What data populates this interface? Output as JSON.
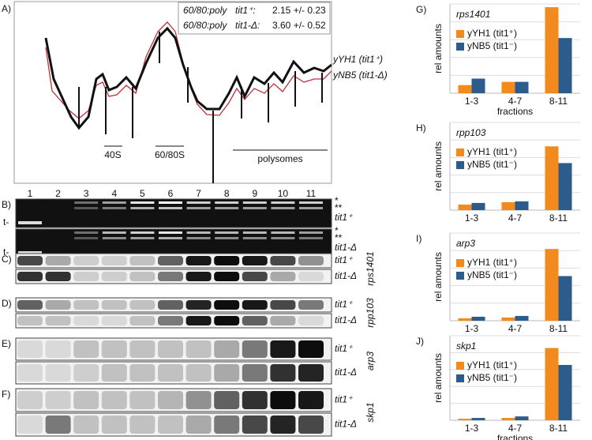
{
  "panel_a": {
    "label": "A)",
    "legend_rows": [
      [
        "60/80:poly",
        "tit1⁺:",
        "2.15 +/- 0.23"
      ],
      [
        "60/80:poly",
        "tit1-Δ:",
        "3.60 +/- 0.52"
      ]
    ],
    "traces": [
      "yYH1 (tit1⁺)",
      "yNB5 (tit1-Δ)"
    ],
    "peaks": [
      "40S",
      "60/80S",
      "polysomes"
    ],
    "fractions": [
      "1",
      "2",
      "3",
      "4",
      "5",
      "6",
      "7",
      "8",
      "9",
      "10",
      "11"
    ]
  },
  "gels": [
    {
      "label": "B)",
      "rows": [
        {
          "strain": "tit1⁺",
          "stars": [
            "*",
            "**"
          ],
          "marker": "t-"
        },
        {
          "strain": "tit1-Δ",
          "stars": [
            "*",
            "**"
          ],
          "marker": "t-"
        }
      ]
    },
    {
      "label": "C)",
      "gene": "rps1401",
      "rows": [
        {
          "strain": "tit1⁺"
        },
        {
          "strain": "tit1-Δ"
        }
      ]
    },
    {
      "label": "D)",
      "gene": "rpp103",
      "rows": [
        {
          "strain": "tit1⁺"
        },
        {
          "strain": "tit1-Δ"
        }
      ]
    },
    {
      "label": "E)",
      "gene": "arp3",
      "rows": [
        {
          "strain": "tit1⁺"
        },
        {
          "strain": "tit1-Δ"
        }
      ]
    },
    {
      "label": "F)",
      "gene": "skp1",
      "rows": [
        {
          "strain": "tit1⁺"
        },
        {
          "strain": "tit1-Δ"
        }
      ]
    }
  ],
  "chart_data": [
    {
      "type": "bar",
      "label": "G)",
      "title": "rps1401",
      "y_label": "rel amounts",
      "x_label": "fractions",
      "categories": [
        "1-3",
        "4-7",
        "8-11"
      ],
      "ylim": [
        0,
        110
      ],
      "series": [
        {
          "name": "yYH1 (tit1⁺)",
          "color": "#f28a1e",
          "values": [
            10,
            14,
            106
          ]
        },
        {
          "name": "yNB5 (tit1⁻)",
          "color": "#2b5c8c",
          "values": [
            18,
            14,
            68
          ]
        }
      ]
    },
    {
      "type": "bar",
      "label": "H)",
      "title": "rpp103",
      "y_label": "rel amounts",
      "categories": [
        "1-3",
        "4-7",
        "8-11"
      ],
      "ylim": [
        0,
        110
      ],
      "series": [
        {
          "name": "yYH1 (tit1⁺)",
          "color": "#f28a1e",
          "values": [
            7,
            10,
            80
          ]
        },
        {
          "name": "yNB5 (tit1⁻)",
          "color": "#2b5c8c",
          "values": [
            9,
            11,
            59
          ]
        }
      ]
    },
    {
      "type": "bar",
      "label": "I)",
      "title": "arp3",
      "y_label": "rel amounts",
      "categories": [
        "1-3",
        "4-7",
        "8-11"
      ],
      "ylim": [
        0,
        110
      ],
      "series": [
        {
          "name": "yYH1 (tit1⁺)",
          "color": "#f28a1e",
          "values": [
            3,
            4,
            90
          ]
        },
        {
          "name": "yNB5 (tit1⁻)",
          "color": "#2b5c8c",
          "values": [
            5,
            6,
            56
          ]
        }
      ]
    },
    {
      "type": "bar",
      "label": "J)",
      "title": "skp1",
      "y_label": "rel amounts",
      "x_label": "fractions",
      "categories": [
        "1-3",
        "4-7",
        "8-11"
      ],
      "ylim": [
        0,
        110
      ],
      "series": [
        {
          "name": "yYH1 (tit1⁺)",
          "color": "#f28a1e",
          "values": [
            2,
            3,
            94
          ]
        },
        {
          "name": "yNB5 (tit1⁻)",
          "color": "#2b5c8c",
          "values": [
            3,
            5,
            72
          ]
        }
      ]
    }
  ]
}
